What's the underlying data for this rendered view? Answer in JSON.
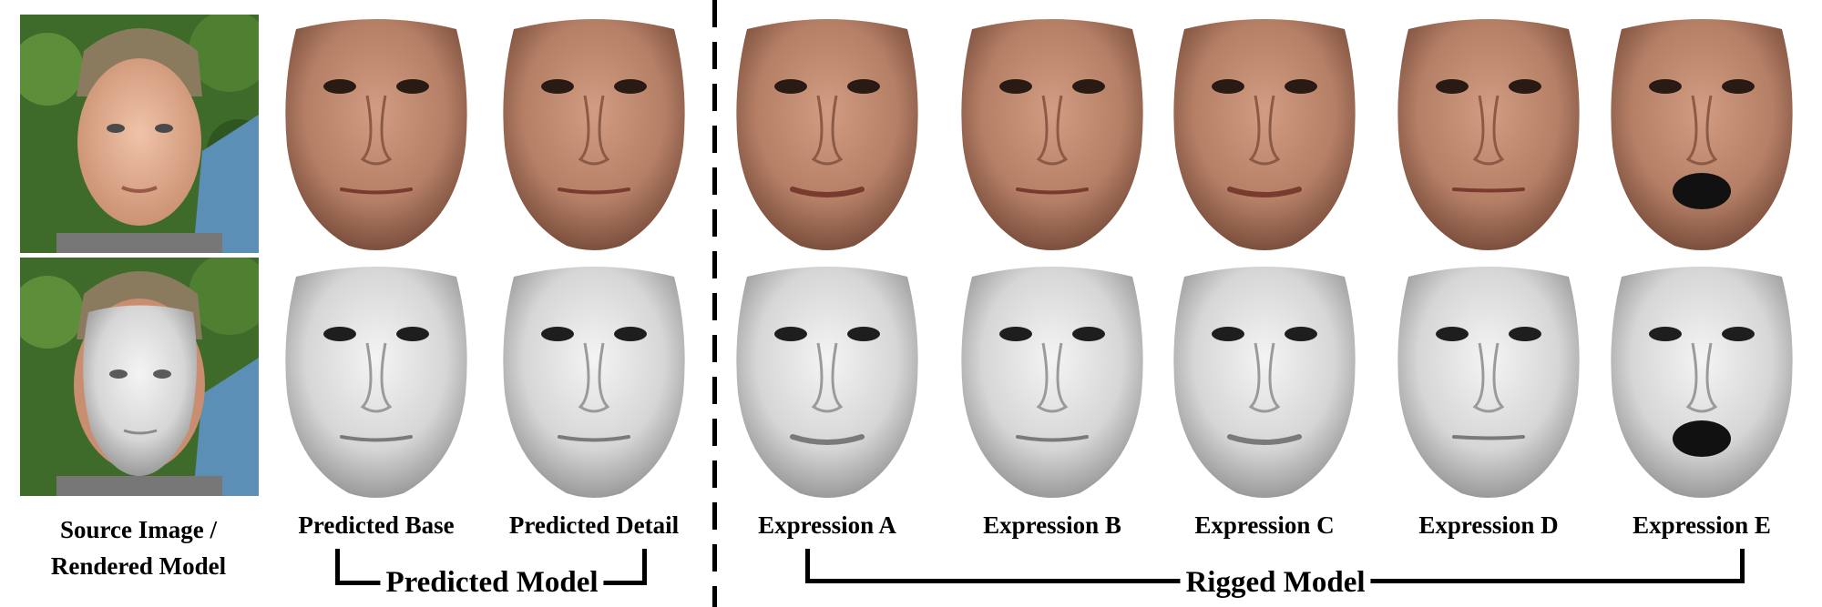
{
  "columns": [
    {
      "id": "source",
      "label_line1": "Source Image /",
      "label_line2": "Rendered Model"
    },
    {
      "id": "base",
      "label": "Predicted Base"
    },
    {
      "id": "detail",
      "label": "Predicted Detail"
    },
    {
      "id": "exprA",
      "label": "Expression A"
    },
    {
      "id": "exprB",
      "label": "Expression B"
    },
    {
      "id": "exprC",
      "label": "Expression C"
    },
    {
      "id": "exprD",
      "label": "Expression D"
    },
    {
      "id": "exprE",
      "label": "Expression E"
    }
  ],
  "groups": {
    "predicted": "Predicted Model",
    "rigged": "Rigged Model"
  },
  "colors": {
    "skin": "#b57f66",
    "skin_dark": "#7d4f3c",
    "gray_mesh": "#d9d9d9",
    "gray_dark": "#8a8a8a",
    "foliage": "#3f6b2a",
    "sky_blue": "#5b8fb5"
  }
}
